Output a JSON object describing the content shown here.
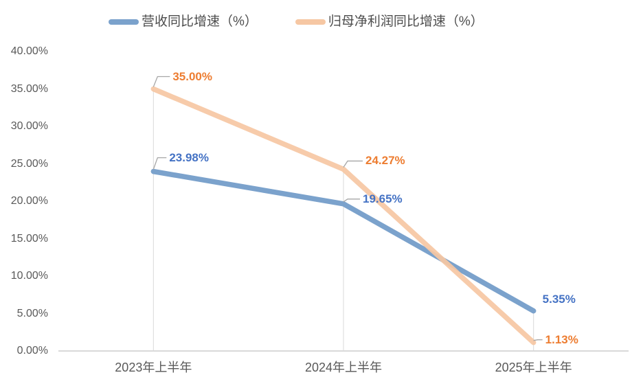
{
  "chart_data": {
    "type": "line",
    "title": "",
    "xlabel": "",
    "ylabel": "",
    "categories": [
      "2023年上半年",
      "2024年上半年",
      "2025年上半年"
    ],
    "series": [
      {
        "name": "营收同比增速（%）",
        "values": [
          23.98,
          19.65,
          5.35
        ],
        "labels": [
          "23.98%",
          "19.65%",
          "5.35%"
        ],
        "color": "#7BA2CC",
        "label_color": "#4472C4"
      },
      {
        "name": "归母净利润同比增速（%）",
        "values": [
          35.0,
          24.27,
          1.13
        ],
        "labels": [
          "35.00%",
          "24.27%",
          "1.13%"
        ],
        "color": "#F6C7A3",
        "label_color": "#ED7D31"
      }
    ],
    "ylim": [
      0,
      40
    ],
    "y_tick_step": 5,
    "y_tick_labels": [
      "40.00%",
      "35.00%",
      "30.00%",
      "25.00%",
      "20.00%",
      "15.00%",
      "10.00%",
      "5.00%",
      "0.00%"
    ],
    "legend_position": "top",
    "grid": "none",
    "drop_lines": true
  },
  "colors": {
    "background": "#FFFFFF",
    "axis_line": "#D9D9D9",
    "drop_line": "#D9D9D9",
    "leader_line": "#A6A6A6",
    "axis_text": "#595959",
    "legend_text": "#4D4D4D"
  }
}
